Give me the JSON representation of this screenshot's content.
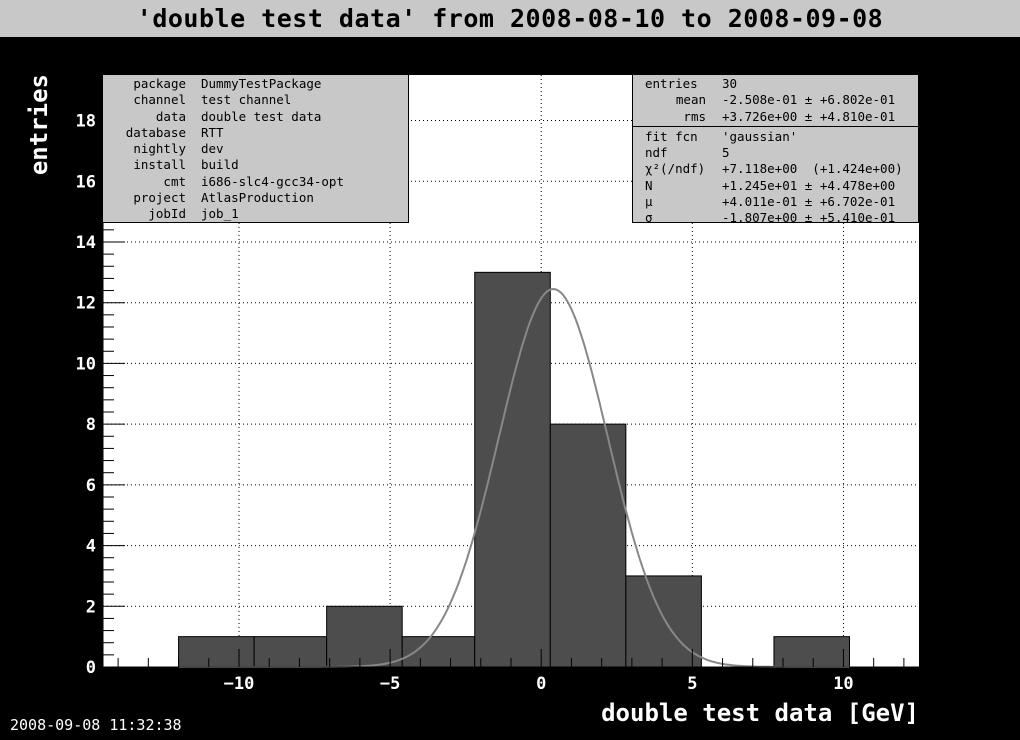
{
  "header": {
    "title": "'double test data' from 2008-08-10 to 2008-09-08"
  },
  "meta": [
    {
      "key": "package",
      "value": "DummyTestPackage"
    },
    {
      "key": "channel",
      "value": "test channel"
    },
    {
      "key": "data",
      "value": "double test data"
    },
    {
      "key": "database",
      "value": "RTT"
    },
    {
      "key": "nightly",
      "value": "dev"
    },
    {
      "key": "install",
      "value": "build"
    },
    {
      "key": "cmt",
      "value": "i686-slc4-gcc34-opt"
    },
    {
      "key": "project",
      "value": "AtlasProduction"
    },
    {
      "key": "jobId",
      "value": "job_1"
    }
  ],
  "stats": {
    "entries": {
      "key": "entries",
      "value": "30"
    },
    "mean": {
      "key": "mean",
      "value": "-2.508e-01 ± +6.802e-01"
    },
    "rms": {
      "key": "rms",
      "value": "+3.726e+00 ± +4.810e-01"
    },
    "fit": [
      {
        "key": "fit fcn",
        "value": "'gaussian'"
      },
      {
        "key": "ndf",
        "value": "5"
      },
      {
        "key": "χ²(/ndf)",
        "value": "+7.118e+00  (+1.424e+00)"
      },
      {
        "key": "N",
        "value": "+1.245e+01 ± +4.478e+00"
      },
      {
        "key": "μ",
        "value": "+4.011e-01 ± +6.702e-01"
      },
      {
        "key": "σ",
        "value": "-1.807e+00 ± +5.410e-01"
      }
    ]
  },
  "footer": {
    "timestamp": "2008-09-08 11:32:38"
  },
  "chart_data": {
    "type": "bar",
    "xlabel": "double test data [GeV]",
    "ylabel": "entries",
    "xlim": [
      -14.5,
      12.5
    ],
    "ylim": [
      0,
      19.5
    ],
    "x_ticks": [
      -10,
      -5,
      0,
      5,
      10
    ],
    "y_ticks": [
      0,
      2,
      4,
      6,
      8,
      10,
      12,
      14,
      16,
      18
    ],
    "bins": [
      {
        "lo": -12.0,
        "hi": -9.5,
        "count": 1
      },
      {
        "lo": -9.5,
        "hi": -7.1,
        "count": 1
      },
      {
        "lo": -7.1,
        "hi": -4.6,
        "count": 2
      },
      {
        "lo": -4.6,
        "hi": -2.2,
        "count": 1
      },
      {
        "lo": -2.2,
        "hi": 0.3,
        "count": 13
      },
      {
        "lo": 0.3,
        "hi": 2.8,
        "count": 8
      },
      {
        "lo": 2.8,
        "hi": 5.3,
        "count": 3
      },
      {
        "lo": 5.3,
        "hi": 7.7,
        "count": 0
      },
      {
        "lo": 7.7,
        "hi": 10.2,
        "count": 1
      }
    ],
    "fit": {
      "function": "gaussian",
      "N": 12.45,
      "mu": 0.4011,
      "sigma": 1.807
    },
    "grid": true,
    "colors": {
      "bar": "#4d4d4d",
      "fit": "#888888",
      "plot_bg": "#ffffff",
      "frame_bg": "#000000"
    }
  }
}
